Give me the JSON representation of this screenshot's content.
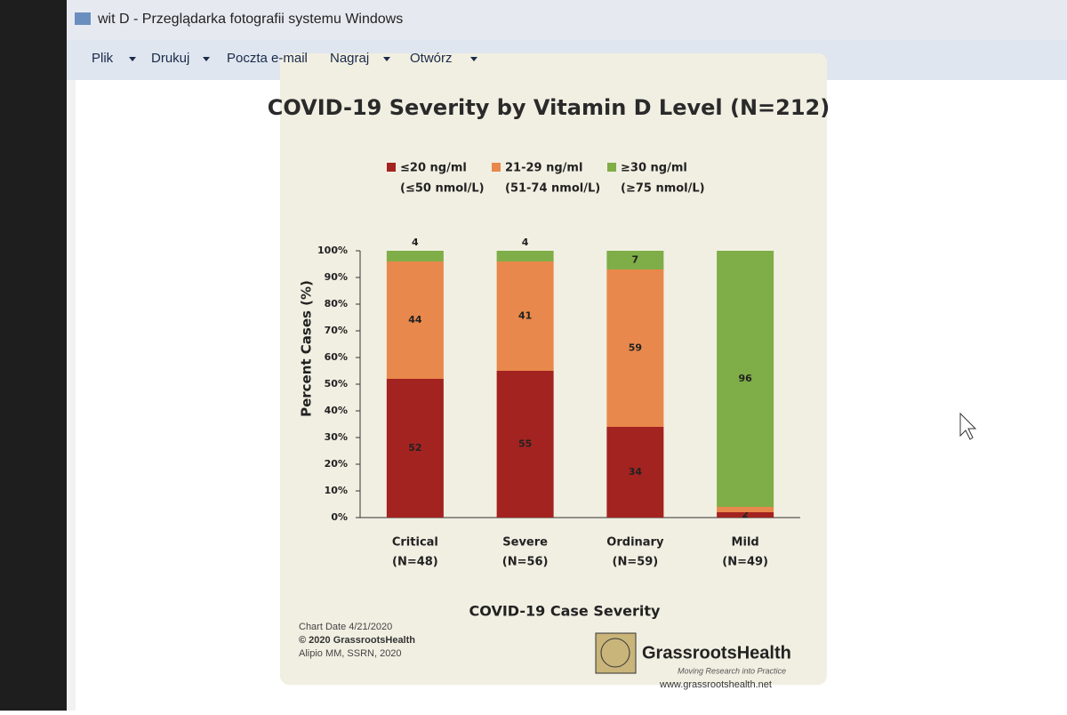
{
  "window": {
    "title": "wit D - Przeglądarka fotografii systemu Windows",
    "menu": [
      "Plik",
      "Drukuj",
      "Poczta e-mail",
      "Nagraj",
      "Otwórz"
    ]
  },
  "chart_data": {
    "type": "stacked_bar",
    "title": "COVID-19 Severity by Vitamin D Level (N=212)",
    "categories": [
      "Critical",
      "Severe",
      "Ordinary",
      "Mild"
    ],
    "category_notes": [
      "(N=48)",
      "(N=56)",
      "(N=59)",
      "(N=49)"
    ],
    "x_label": "COVID-19 Case Severity",
    "y_label": "Percent Cases (%)",
    "series": [
      {
        "name": "≤20 ng/ml",
        "note": "(≤50 nmol/L)",
        "color": "#a32320",
        "values": [
          52,
          55,
          34,
          2
        ]
      },
      {
        "name": "21-29 ng/ml",
        "note": "(51-74 nmol/L)",
        "color": "#e8884c",
        "values": [
          44,
          41,
          59,
          2
        ],
        "value_labels": [
          "44",
          "41",
          "59",
          null
        ]
      },
      {
        "name": "≥30 ng/ml",
        "note": "(≥75 nmol/L)",
        "color": "#7fad47",
        "values": [
          4,
          4,
          7,
          96
        ]
      }
    ],
    "ylim": [
      0,
      100
    ],
    "yticks": [
      {
        "value": 0,
        "label": "0%"
      },
      {
        "value": 10,
        "label": "10%"
      },
      {
        "value": 20,
        "label": "20%"
      },
      {
        "value": 30,
        "label": "30%"
      },
      {
        "value": 40,
        "label": "40%"
      },
      {
        "value": 50,
        "label": "50%"
      },
      {
        "value": 60,
        "label": "60%"
      },
      {
        "value": 70,
        "label": "70%"
      },
      {
        "value": 80,
        "label": "80%"
      },
      {
        "value": 90,
        "label": "90%"
      },
      {
        "value": 100,
        "label": "100%"
      }
    ],
    "footer": [
      "Chart Date 4/21/2020",
      "© 2020 GrassrootsHealth",
      "Alipio MM, SSRN, 2020"
    ],
    "logo": {
      "name": "GrassrootsHealth",
      "tagline": "Moving Research into Practice",
      "url": "www.grassrootshealth.net"
    }
  }
}
